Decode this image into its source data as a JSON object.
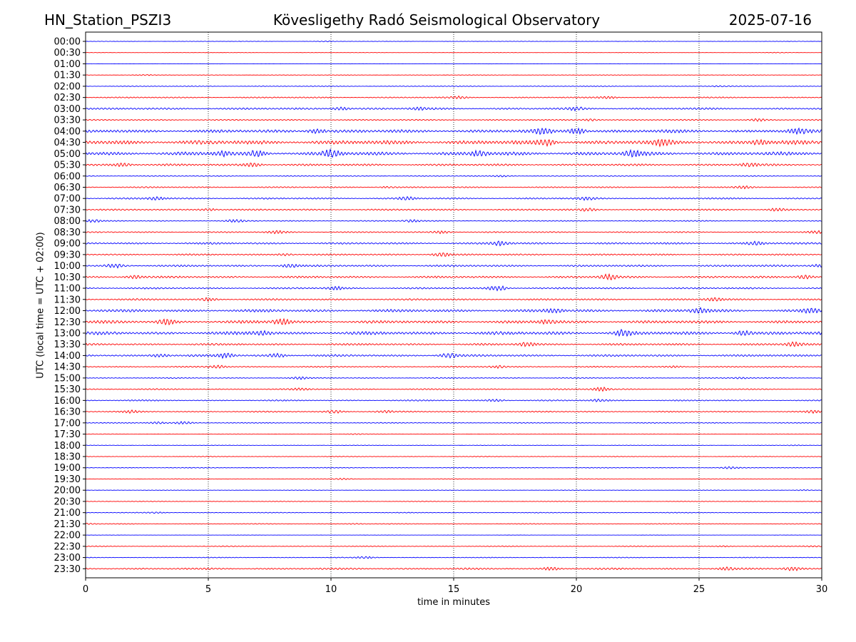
{
  "header": {
    "station": "HN_Station_PSZI3",
    "observatory": "Kövesligethy Radó Seismological Observatory",
    "date": "2025-07-16"
  },
  "chart_data": {
    "type": "line",
    "title": "Kövesligethy Radó Seismological Observatory",
    "xlabel": "time in minutes",
    "ylabel": "UTC (local time = UTC + 02:00)",
    "xlim": [
      0,
      30
    ],
    "x_ticks": [
      0,
      5,
      10,
      15,
      20,
      25,
      30
    ],
    "x_grid": "dotted vertical lines at 5-minute intervals",
    "trace_colors": [
      "#0000ff",
      "#ff0000"
    ],
    "rows": [
      {
        "label": "00:00",
        "color": "#0000ff",
        "activity": 0.25,
        "events": [
          [
            9.8,
            0.5
          ]
        ]
      },
      {
        "label": "00:30",
        "color": "#ff0000",
        "activity": 0.2,
        "events": [
          [
            28.3,
            0.4
          ]
        ]
      },
      {
        "label": "01:00",
        "color": "#0000ff",
        "activity": 0.15,
        "events": []
      },
      {
        "label": "01:30",
        "color": "#ff0000",
        "activity": 0.3,
        "events": [
          [
            2.4,
            0.6
          ]
        ]
      },
      {
        "label": "02:00",
        "color": "#0000ff",
        "activity": 0.5,
        "events": [
          [
            25.8,
            0.5
          ]
        ]
      },
      {
        "label": "02:30",
        "color": "#ff0000",
        "activity": 0.8,
        "events": [
          [
            15.2,
            1.5
          ],
          [
            21.3,
            1.6
          ]
        ]
      },
      {
        "label": "03:00",
        "color": "#0000ff",
        "activity": 1.2,
        "events": [
          [
            10.4,
            2.0
          ],
          [
            13.6,
            1.5
          ],
          [
            20.0,
            1.7
          ]
        ]
      },
      {
        "label": "03:30",
        "color": "#ff0000",
        "activity": 0.8,
        "events": [
          [
            20.6,
            1.5
          ],
          [
            27.4,
            1.5
          ]
        ]
      },
      {
        "label": "04:00",
        "color": "#0000ff",
        "activity": 2.0,
        "events": [
          [
            9.4,
            3.0
          ],
          [
            18.6,
            3.5
          ],
          [
            20.0,
            4.0
          ],
          [
            29.0,
            3.0
          ]
        ]
      },
      {
        "label": "04:30",
        "color": "#ff0000",
        "activity": 2.5,
        "events": [
          [
            18.8,
            3.5
          ],
          [
            23.5,
            3.0
          ],
          [
            27.5,
            3.0
          ]
        ]
      },
      {
        "label": "05:00",
        "color": "#0000ff",
        "activity": 2.2,
        "events": [
          [
            5.6,
            3.0
          ],
          [
            7.0,
            3.5
          ],
          [
            10.0,
            4.0
          ],
          [
            16.0,
            3.0
          ],
          [
            22.3,
            3.5
          ]
        ]
      },
      {
        "label": "05:30",
        "color": "#ff0000",
        "activity": 1.3,
        "events": [
          [
            1.5,
            2.5
          ],
          [
            6.8,
            2.8
          ],
          [
            27.0,
            2.0
          ]
        ]
      },
      {
        "label": "06:00",
        "color": "#0000ff",
        "activity": 0.6,
        "events": [
          [
            17.0,
            1.0
          ]
        ]
      },
      {
        "label": "06:30",
        "color": "#ff0000",
        "activity": 0.8,
        "events": [
          [
            12.3,
            1.2
          ],
          [
            26.8,
            1.5
          ]
        ]
      },
      {
        "label": "07:00",
        "color": "#0000ff",
        "activity": 1.0,
        "events": [
          [
            2.9,
            2.0
          ],
          [
            13.1,
            1.8
          ],
          [
            20.4,
            1.8
          ]
        ]
      },
      {
        "label": "07:30",
        "color": "#ff0000",
        "activity": 1.0,
        "events": [
          [
            5.0,
            1.8
          ],
          [
            20.5,
            1.8
          ],
          [
            28.2,
            1.8
          ]
        ]
      },
      {
        "label": "08:00",
        "color": "#0000ff",
        "activity": 0.7,
        "events": [
          [
            0.3,
            1.5
          ],
          [
            6.1,
            1.5
          ],
          [
            13.3,
            1.5
          ]
        ]
      },
      {
        "label": "08:30",
        "color": "#ff0000",
        "activity": 0.8,
        "events": [
          [
            7.8,
            2.2
          ],
          [
            14.5,
            2.0
          ],
          [
            29.8,
            1.5
          ]
        ]
      },
      {
        "label": "09:00",
        "color": "#0000ff",
        "activity": 1.2,
        "events": [
          [
            16.9,
            2.5
          ],
          [
            27.3,
            2.0
          ]
        ]
      },
      {
        "label": "09:30",
        "color": "#ff0000",
        "activity": 1.0,
        "events": [
          [
            14.5,
            2.8
          ],
          [
            8.1,
            1.5
          ]
        ]
      },
      {
        "label": "10:00",
        "color": "#0000ff",
        "activity": 1.2,
        "events": [
          [
            1.2,
            2.5
          ],
          [
            8.3,
            2.3
          ],
          [
            29.9,
            2.0
          ]
        ]
      },
      {
        "label": "10:30",
        "color": "#ff0000",
        "activity": 1.3,
        "events": [
          [
            2.0,
            2.2
          ],
          [
            21.3,
            3.5
          ],
          [
            29.3,
            2.5
          ]
        ]
      },
      {
        "label": "11:00",
        "color": "#0000ff",
        "activity": 1.0,
        "events": [
          [
            10.2,
            2.0
          ],
          [
            16.8,
            3.5
          ]
        ]
      },
      {
        "label": "11:30",
        "color": "#ff0000",
        "activity": 1.1,
        "events": [
          [
            5.0,
            2.0
          ],
          [
            25.6,
            2.0
          ]
        ]
      },
      {
        "label": "12:00",
        "color": "#0000ff",
        "activity": 1.7,
        "events": [
          [
            19.1,
            2.5
          ],
          [
            25.0,
            3.0
          ],
          [
            29.6,
            3.0
          ]
        ]
      },
      {
        "label": "12:30",
        "color": "#ff0000",
        "activity": 1.8,
        "events": [
          [
            3.3,
            4.0
          ],
          [
            8.0,
            3.5
          ],
          [
            18.8,
            2.5
          ]
        ]
      },
      {
        "label": "13:00",
        "color": "#0000ff",
        "activity": 2.0,
        "events": [
          [
            7.2,
            2.5
          ],
          [
            21.9,
            3.5
          ],
          [
            26.8,
            3.0
          ]
        ]
      },
      {
        "label": "13:30",
        "color": "#ff0000",
        "activity": 1.3,
        "events": [
          [
            18.0,
            2.5
          ],
          [
            28.9,
            2.5
          ]
        ]
      },
      {
        "label": "14:00",
        "color": "#0000ff",
        "activity": 1.3,
        "events": [
          [
            3.0,
            2.0
          ],
          [
            5.7,
            3.0
          ],
          [
            7.8,
            2.5
          ],
          [
            14.8,
            3.5
          ]
        ]
      },
      {
        "label": "14:30",
        "color": "#ff0000",
        "activity": 0.8,
        "events": [
          [
            5.4,
            2.0
          ],
          [
            16.8,
            1.5
          ],
          [
            24.0,
            1.3
          ]
        ]
      },
      {
        "label": "15:00",
        "color": "#0000ff",
        "activity": 0.6,
        "events": [
          [
            8.7,
            1.5
          ],
          [
            26.7,
            1.0
          ]
        ]
      },
      {
        "label": "15:30",
        "color": "#ff0000",
        "activity": 0.8,
        "events": [
          [
            21.0,
            3.0
          ],
          [
            8.8,
            1.0
          ]
        ]
      },
      {
        "label": "16:00",
        "color": "#0000ff",
        "activity": 0.8,
        "events": [
          [
            16.7,
            1.5
          ],
          [
            20.9,
            1.5
          ]
        ]
      },
      {
        "label": "16:30",
        "color": "#ff0000",
        "activity": 0.8,
        "events": [
          [
            1.8,
            1.5
          ],
          [
            10.1,
            2.0
          ],
          [
            12.2,
            1.5
          ],
          [
            29.7,
            1.5
          ]
        ]
      },
      {
        "label": "17:00",
        "color": "#0000ff",
        "activity": 0.6,
        "events": [
          [
            2.9,
            1.5
          ],
          [
            4.0,
            1.8
          ]
        ]
      },
      {
        "label": "17:30",
        "color": "#ff0000",
        "activity": 0.3,
        "events": [
          [
            11.0,
            0.6
          ]
        ]
      },
      {
        "label": "18:00",
        "color": "#0000ff",
        "activity": 0.3,
        "events": [
          [
            28.9,
            0.5
          ]
        ]
      },
      {
        "label": "18:30",
        "color": "#ff0000",
        "activity": 0.4,
        "events": []
      },
      {
        "label": "19:00",
        "color": "#0000ff",
        "activity": 0.5,
        "events": [
          [
            26.3,
            1.2
          ]
        ]
      },
      {
        "label": "19:30",
        "color": "#ff0000",
        "activity": 0.4,
        "events": [
          [
            10.5,
            1.0
          ]
        ]
      },
      {
        "label": "20:00",
        "color": "#0000ff",
        "activity": 0.3,
        "events": [
          [
            29.3,
            0.8
          ]
        ]
      },
      {
        "label": "20:30",
        "color": "#ff0000",
        "activity": 0.4,
        "events": []
      },
      {
        "label": "21:00",
        "color": "#0000ff",
        "activity": 0.5,
        "events": [
          [
            2.9,
            0.8
          ]
        ]
      },
      {
        "label": "21:30",
        "color": "#ff0000",
        "activity": 0.5,
        "events": [
          [
            0.1,
            1.0
          ],
          [
            11.0,
            0.6
          ]
        ]
      },
      {
        "label": "22:00",
        "color": "#0000ff",
        "activity": 0.15,
        "events": []
      },
      {
        "label": "22:30",
        "color": "#ff0000",
        "activity": 0.5,
        "events": [
          [
            26.0,
            0.8
          ],
          [
            29.6,
            0.8
          ]
        ]
      },
      {
        "label": "23:00",
        "color": "#0000ff",
        "activity": 0.5,
        "events": [
          [
            11.4,
            1.3
          ]
        ]
      },
      {
        "label": "23:30",
        "color": "#ff0000",
        "activity": 1.1,
        "events": [
          [
            19.0,
            2.0
          ],
          [
            26.1,
            1.8
          ],
          [
            28.8,
            2.2
          ]
        ]
      }
    ]
  }
}
